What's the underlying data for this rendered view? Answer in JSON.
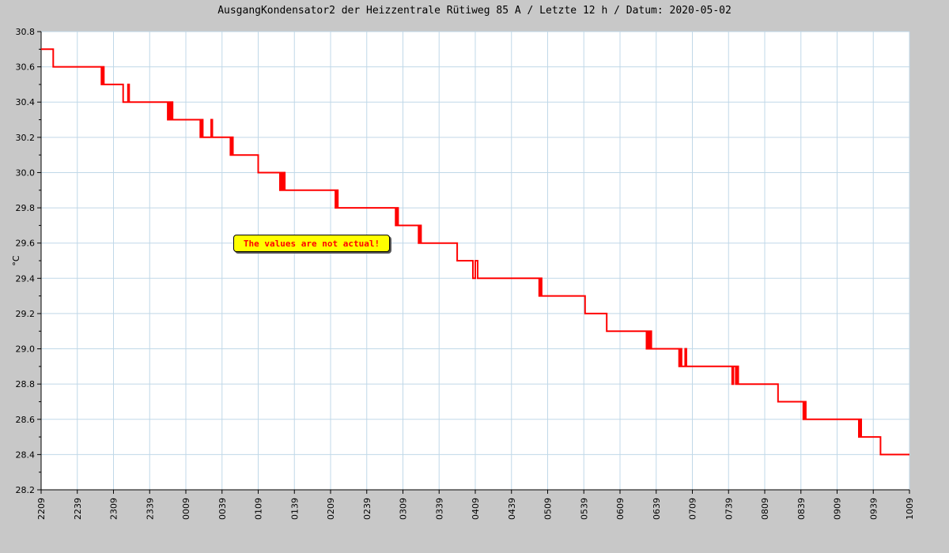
{
  "chart_data": {
    "type": "line",
    "title": "AusgangKondensator2 der Heizzentrale Rütiweg 85 A / Letzte 12 h / Datum: 2020-05-02",
    "xlabel": "",
    "ylabel": "°C",
    "ylim": [
      28.2,
      30.8
    ],
    "yticks": [
      "28.2",
      "28.4",
      "28.6",
      "28.8",
      "29.0",
      "29.2",
      "29.4",
      "29.6",
      "29.8",
      "30.0",
      "30.2",
      "30.4",
      "30.6",
      "30.8"
    ],
    "xticks": [
      "2209",
      "2239",
      "2309",
      "2339",
      "0009",
      "0039",
      "0109",
      "0139",
      "0209",
      "0239",
      "0309",
      "0339",
      "0409",
      "0439",
      "0509",
      "0539",
      "0609",
      "0639",
      "0709",
      "0739",
      "0809",
      "0839",
      "0909",
      "0939",
      "1009"
    ],
    "x_range_minutes": [
      0,
      720
    ],
    "grid": true,
    "annotation": "The values are not actual!",
    "colors": {
      "line": "#ff0000",
      "grid": "#c0d8e8",
      "background": "#c8c8c8",
      "plot_background": "#ffffff",
      "annotation_bg": "#ffff00",
      "annotation_text": "#ff0000"
    },
    "series": [
      {
        "x": [
          0,
          10,
          10,
          50,
          50,
          51,
          51,
          52,
          52,
          53,
          53,
          68,
          68,
          72,
          72,
          73,
          73,
          74,
          74,
          105,
          105,
          106,
          106,
          107,
          107,
          108,
          108,
          109,
          109,
          110,
          110,
          132,
          132,
          133,
          133,
          134,
          134,
          135,
          135,
          141,
          141,
          142,
          142,
          143,
          143,
          157,
          157,
          158,
          158,
          159,
          159,
          180,
          180,
          198,
          198,
          199,
          199,
          200,
          200,
          201,
          201,
          202,
          202,
          244,
          244,
          245,
          245,
          246,
          246,
          247,
          247,
          294,
          294,
          295,
          295,
          296,
          296,
          313,
          313,
          314,
          314,
          315,
          315,
          345,
          345,
          358,
          358,
          360,
          360,
          362,
          362,
          413,
          413,
          414,
          414,
          415,
          415,
          416,
          416,
          451,
          451,
          469,
          469,
          502,
          502,
          503,
          503,
          504,
          504,
          505,
          505,
          506,
          506,
          507,
          507,
          529,
          529,
          530,
          530,
          531,
          531,
          534,
          534,
          535,
          535,
          536,
          536,
          573,
          573,
          574,
          574,
          576,
          576,
          577,
          577,
          578,
          578,
          580,
          580,
          611,
          611,
          632,
          632,
          633,
          633,
          634,
          634,
          635,
          635,
          678,
          678,
          679,
          679,
          680,
          680,
          696,
          696,
          720
        ],
        "y": [
          30.7,
          30.7,
          30.6,
          30.6,
          30.5,
          30.5,
          30.6,
          30.6,
          30.5,
          30.5,
          30.5,
          30.5,
          30.4,
          30.4,
          30.5,
          30.5,
          30.4,
          30.4,
          30.4,
          30.4,
          30.3,
          30.3,
          30.4,
          30.4,
          30.3,
          30.3,
          30.4,
          30.4,
          30.3,
          30.3,
          30.3,
          30.3,
          30.2,
          30.2,
          30.3,
          30.3,
          30.2,
          30.2,
          30.2,
          30.2,
          30.3,
          30.3,
          30.2,
          30.2,
          30.2,
          30.2,
          30.1,
          30.1,
          30.2,
          30.2,
          30.1,
          30.1,
          30.0,
          30.0,
          29.9,
          29.9,
          30.0,
          30.0,
          29.9,
          29.9,
          30.0,
          30.0,
          29.9,
          29.9,
          29.8,
          29.8,
          29.9,
          29.9,
          29.8,
          29.8,
          29.8,
          29.8,
          29.7,
          29.7,
          29.8,
          29.8,
          29.7,
          29.7,
          29.6,
          29.6,
          29.7,
          29.7,
          29.6,
          29.6,
          29.5,
          29.5,
          29.4,
          29.4,
          29.5,
          29.5,
          29.4,
          29.4,
          29.3,
          29.3,
          29.4,
          29.4,
          29.3,
          29.3,
          29.3,
          29.3,
          29.2,
          29.2,
          29.1,
          29.1,
          29.0,
          29.0,
          29.1,
          29.1,
          29.0,
          29.0,
          29.1,
          29.1,
          29.0,
          29.0,
          29.0,
          29.0,
          28.9,
          28.9,
          29.0,
          29.0,
          28.9,
          28.9,
          29.0,
          29.0,
          28.9,
          28.9,
          28.9,
          28.9,
          28.8,
          28.8,
          28.9,
          28.9,
          28.8,
          28.8,
          28.9,
          28.9,
          28.8,
          28.8,
          28.8,
          28.8,
          28.7,
          28.7,
          28.6,
          28.6,
          28.7,
          28.7,
          28.6,
          28.6,
          28.6,
          28.6,
          28.5,
          28.5,
          28.6,
          28.6,
          28.5,
          28.5,
          28.4,
          28.4
        ]
      }
    ]
  }
}
